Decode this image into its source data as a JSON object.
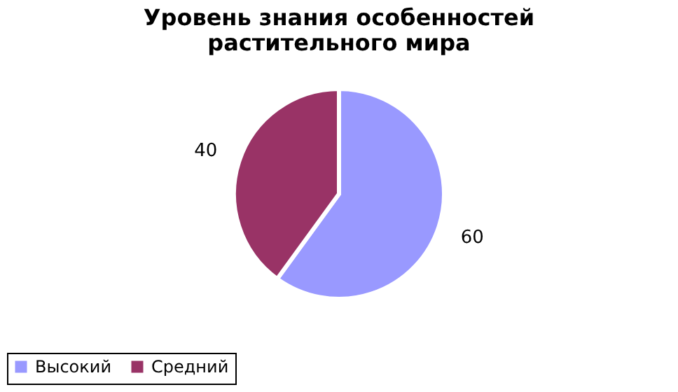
{
  "chart_data": {
    "type": "pie",
    "title": "Уровень знания особенностей растительного мира",
    "categories": [
      "Высокий",
      "Средний"
    ],
    "values": [
      60,
      40
    ],
    "colors": [
      "#9999ff",
      "#993366"
    ],
    "data_labels": true,
    "legend": "bottom"
  }
}
